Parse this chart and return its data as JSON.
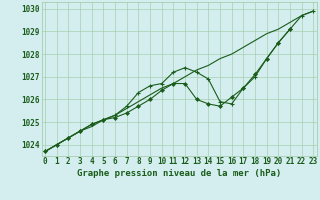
{
  "title": "Graphe pression niveau de la mer (hPa)",
  "x_hours": [
    0,
    1,
    2,
    3,
    4,
    5,
    6,
    7,
    8,
    9,
    10,
    11,
    12,
    13,
    14,
    15,
    16,
    17,
    18,
    19,
    20,
    21,
    22,
    23
  ],
  "line1": [
    1023.7,
    1024.0,
    1024.3,
    1024.6,
    1024.8,
    1025.1,
    1025.3,
    1025.6,
    1025.9,
    1026.2,
    1026.5,
    1026.7,
    1027.0,
    1027.3,
    1027.5,
    1027.8,
    1028.0,
    1028.3,
    1028.6,
    1028.9,
    1029.1,
    1029.4,
    1029.7,
    1029.9
  ],
  "line2_x": [
    0,
    1,
    2,
    3,
    4,
    5,
    6,
    7,
    8,
    9,
    10,
    11,
    12,
    13,
    14,
    15,
    16,
    17,
    18,
    19,
    20,
    21
  ],
  "line2_y": [
    1023.7,
    1024.0,
    1024.3,
    1024.6,
    1024.9,
    1025.1,
    1025.2,
    1025.4,
    1025.7,
    1026.0,
    1026.4,
    1026.7,
    1026.7,
    1026.0,
    1025.8,
    1025.7,
    1026.1,
    1026.5,
    1027.1,
    1027.8,
    1028.5,
    1029.1
  ],
  "line3": [
    1023.7,
    1024.0,
    1024.3,
    1024.6,
    1024.9,
    1025.1,
    1025.3,
    1025.7,
    1026.3,
    1026.6,
    1026.7,
    1027.2,
    1027.4,
    1027.2,
    1026.9,
    1025.9,
    1025.8,
    1026.5,
    1027.0,
    1027.8,
    1028.5,
    1029.1,
    1029.7,
    1029.9
  ],
  "ylim": [
    1023.5,
    1030.3
  ],
  "yticks": [
    1024,
    1025,
    1026,
    1027,
    1028,
    1029,
    1030
  ],
  "xlim": [
    -0.3,
    23.3
  ],
  "bg_color": "#d4eef0",
  "grid_color": "#9ec8a0",
  "line_color": "#1a5c1a",
  "title_fontsize": 6.5,
  "tick_fontsize": 5.5
}
